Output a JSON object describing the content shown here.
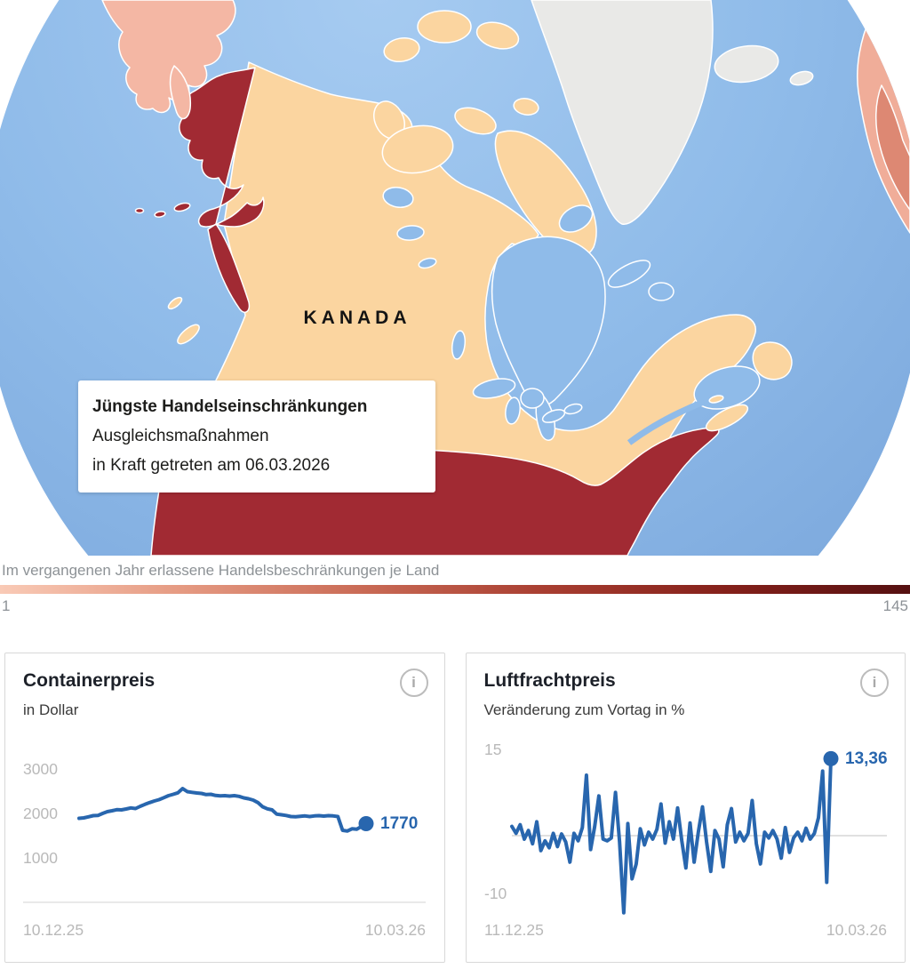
{
  "map": {
    "country_label": "KANADA",
    "tooltip": {
      "title": "Jüngste Handelseinschränkungen",
      "line1": "Ausgleichsmaßnahmen",
      "line2": "in Kraft getreten am 06.03.2026"
    },
    "colors": {
      "ocean": "#8fbbe9",
      "canada": "#fbd5a0",
      "usa": "#a12a33",
      "russia": "#f4b7a4",
      "greenland": "#e9e9e7",
      "europe": "#f0ad99",
      "europe_dark": "#dd8873"
    }
  },
  "legend": {
    "caption": "Im vergangenen Jahr erlassene Handelsbeschränkungen je Land",
    "min_label": "1",
    "max_label": "145",
    "gradient_stops": [
      "#f9cab6",
      "#e59a82",
      "#c96a55",
      "#a83e31",
      "#84201a",
      "#551011"
    ]
  },
  "icons": {
    "info": "i"
  },
  "chart_data": [
    {
      "type": "line",
      "title": "Containerpreis",
      "subtitle": "in Dollar",
      "y_ticks": [
        {
          "label": "3000",
          "value": 3000
        },
        {
          "label": "2000",
          "value": 2000
        },
        {
          "label": "1000",
          "value": 1000
        }
      ],
      "x_labels": [
        "10.12.25",
        "10.03.26"
      ],
      "ylim": [
        1000,
        3000
      ],
      "last_value_label": "1770",
      "accent_color": "#2866ae",
      "values": [
        1890,
        1900,
        1925,
        1950,
        1955,
        2000,
        2040,
        2060,
        2085,
        2080,
        2100,
        2125,
        2110,
        2160,
        2205,
        2245,
        2280,
        2310,
        2355,
        2400,
        2430,
        2465,
        2560,
        2490,
        2475,
        2460,
        2450,
        2425,
        2430,
        2405,
        2395,
        2400,
        2390,
        2400,
        2385,
        2350,
        2330,
        2300,
        2245,
        2150,
        2105,
        2080,
        1985,
        1970,
        1955,
        1930,
        1925,
        1935,
        1945,
        1930,
        1945,
        1950,
        1940,
        1950,
        1945,
        1930,
        1620,
        1605,
        1655,
        1645,
        1705,
        1770
      ]
    },
    {
      "type": "line",
      "title": "Luftfrachtpreis",
      "subtitle": "Veränderung zum Vortag in %",
      "y_ticks": [
        {
          "label": "15",
          "value": 15
        },
        {
          "label": "-10",
          "value": -10
        }
      ],
      "zero_line": true,
      "x_labels": [
        "11.12.25",
        "10.03.26"
      ],
      "ylim": [
        -15,
        15
      ],
      "last_value_label": "13,36",
      "accent_color": "#2866ae",
      "values": [
        1.6,
        0.4,
        1.9,
        -0.6,
        0.9,
        -1.4,
        2.4,
        -2.6,
        -0.9,
        -2.1,
        0.4,
        -1.9,
        0.3,
        -1.1,
        -4.6,
        0.4,
        -0.9,
        1.4,
        10.5,
        -2.4,
        1.6,
        6.9,
        -0.6,
        -0.9,
        -0.4,
        7.5,
        -1.1,
        -13.4,
        2.1,
        -7.5,
        -4.9,
        1.2,
        -1.6,
        0.6,
        -0.6,
        1.1,
        5.5,
        -1.3,
        2.4,
        -0.6,
        4.8,
        -0.9,
        -5.6,
        2.2,
        -4.6,
        0.6,
        5.0,
        -1.1,
        -6.2,
        0.9,
        -0.6,
        -5.4,
        1.9,
        4.7,
        -1.1,
        0.6,
        -0.9,
        0.4,
        6.1,
        -1.4,
        -4.9,
        0.6,
        -0.4,
        0.9,
        -0.6,
        -3.9,
        1.4,
        -2.9,
        -0.4,
        0.6,
        -0.9,
        1.3,
        -0.6,
        0.4,
        3.1,
        11.2,
        -8.1,
        13.36
      ]
    }
  ]
}
